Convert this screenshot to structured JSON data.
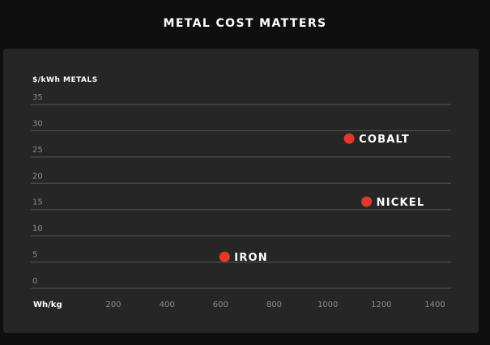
{
  "title": "METAL COST MATTERS",
  "colors": {
    "background": "#0f0f0f",
    "panel": "#262626",
    "point": "#e0392b",
    "grid": "#555555",
    "tick_label": "#8c8c8c",
    "text": "#ffffff"
  },
  "chart_data": {
    "type": "scatter",
    "title": "METAL COST MATTERS",
    "ylabel": "$/kWh METALS",
    "xlabel": "Wh/kg",
    "xlim": [
      0,
      1450
    ],
    "ylim": [
      0,
      35
    ],
    "x_ticks": [
      200,
      400,
      600,
      800,
      1000,
      1200,
      1400
    ],
    "y_ticks": [
      0,
      5,
      10,
      15,
      20,
      25,
      30,
      35
    ],
    "grid": "horizontal",
    "points": [
      {
        "label": "IRON",
        "x": 615,
        "y": 6
      },
      {
        "label": "NICKEL",
        "x": 1145,
        "y": 16.5
      },
      {
        "label": "COBALT",
        "x": 1080,
        "y": 28.5
      }
    ]
  }
}
